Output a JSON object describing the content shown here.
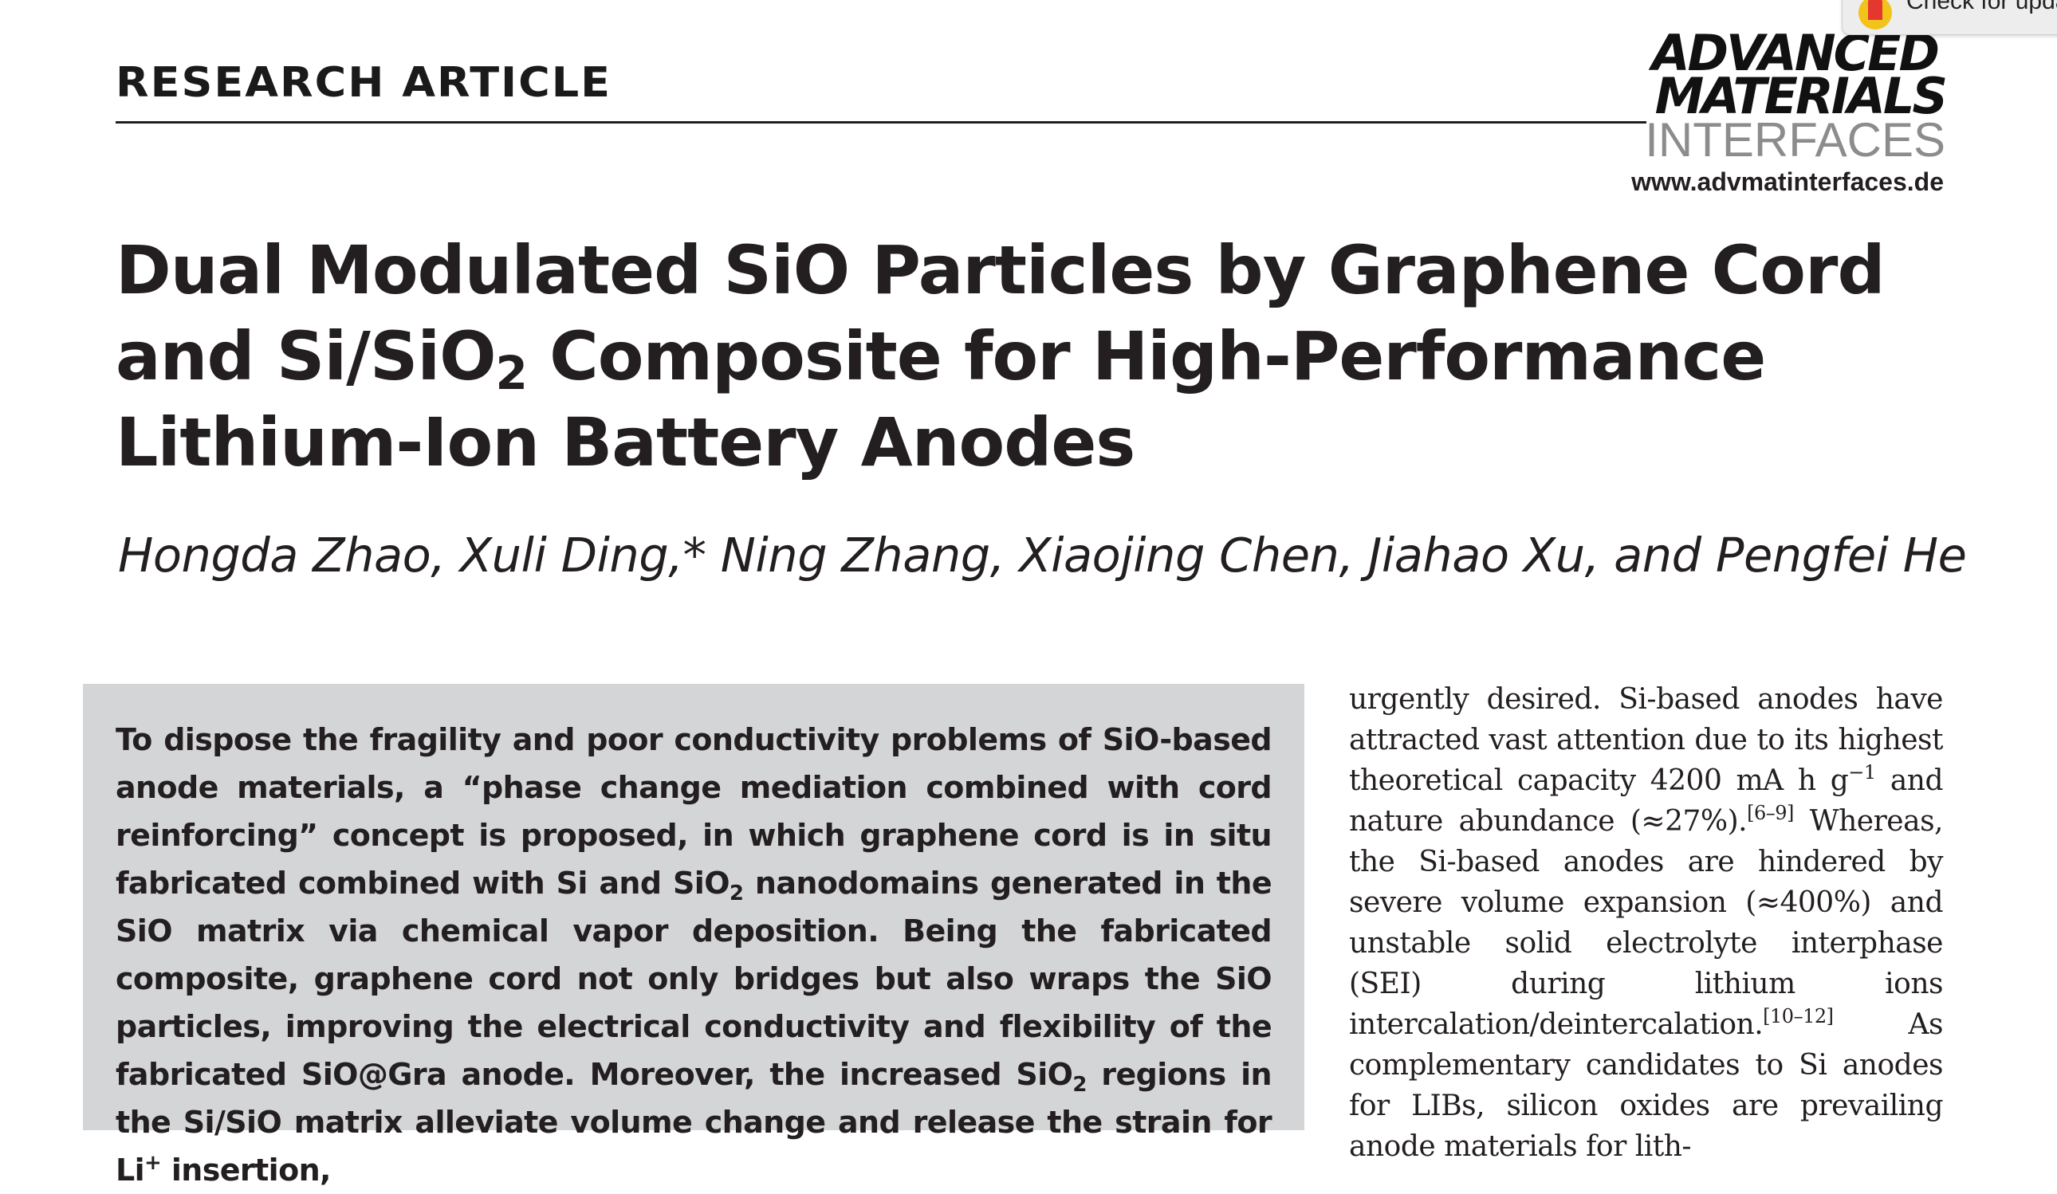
{
  "header": {
    "section_label": "RESEARCH ARTICLE",
    "journal_logo_line1": "ADVANCED",
    "journal_logo_line2": "MATERIALS",
    "journal_logo_line3": "INTERFACES",
    "journal_url": "www.advmatinterfaces.de"
  },
  "overlay": {
    "check_updates_label": "Check for updates"
  },
  "article": {
    "title_part1": "Dual Modulated SiO Particles by Graphene Cord and Si/SiO",
    "title_sub": "2",
    "title_part2": " Composite for High-Performance Lithium-Ion Battery Anodes",
    "authors": "Hongda Zhao, Xuli Ding,* Ning Zhang, Xiaojing Chen, Jiahao Xu, and Pengfei He"
  },
  "abstract": {
    "part1": "To dispose the fragility and poor conductivity problems of SiO-based anode materials, a “phase change mediation combined with cord reinforcing” concept is proposed, in which graphene cord is in situ fabricated combined with Si and SiO",
    "sub1": "2",
    "part2": " nanodomains generated in the SiO matrix via chemical vapor deposition. Being the fabricated composite, graphene cord not only bridges but also wraps the SiO particles, improving the electrical conductivity and flexibility of the fabricated SiO@Gra anode. Moreover, the increased SiO",
    "sub2": "2",
    "part3": " regions in the Si/SiO matrix alleviate volume change and release the strain for Li",
    "sup1": "+",
    "part4": " insertion,"
  },
  "body_column": {
    "part1": "urgently desired. Si-based anodes have attracted vast attention due to its highest theoretical capacity 4200 mA h g",
    "sup1": "−1",
    "part2": " and nature abundance (≈27%).",
    "ref1": "[6–9]",
    "part3": " Whereas, the Si-based anodes are hindered by severe volume expansion (≈400%) and unstable solid electrolyte interphase (SEI) during lithium ions intercalation/deintercalation.",
    "ref2": "[10–12]",
    "part4": " As complementary candidates to Si anodes for LIBs, silicon oxides are prevailing anode materials for lith-"
  }
}
